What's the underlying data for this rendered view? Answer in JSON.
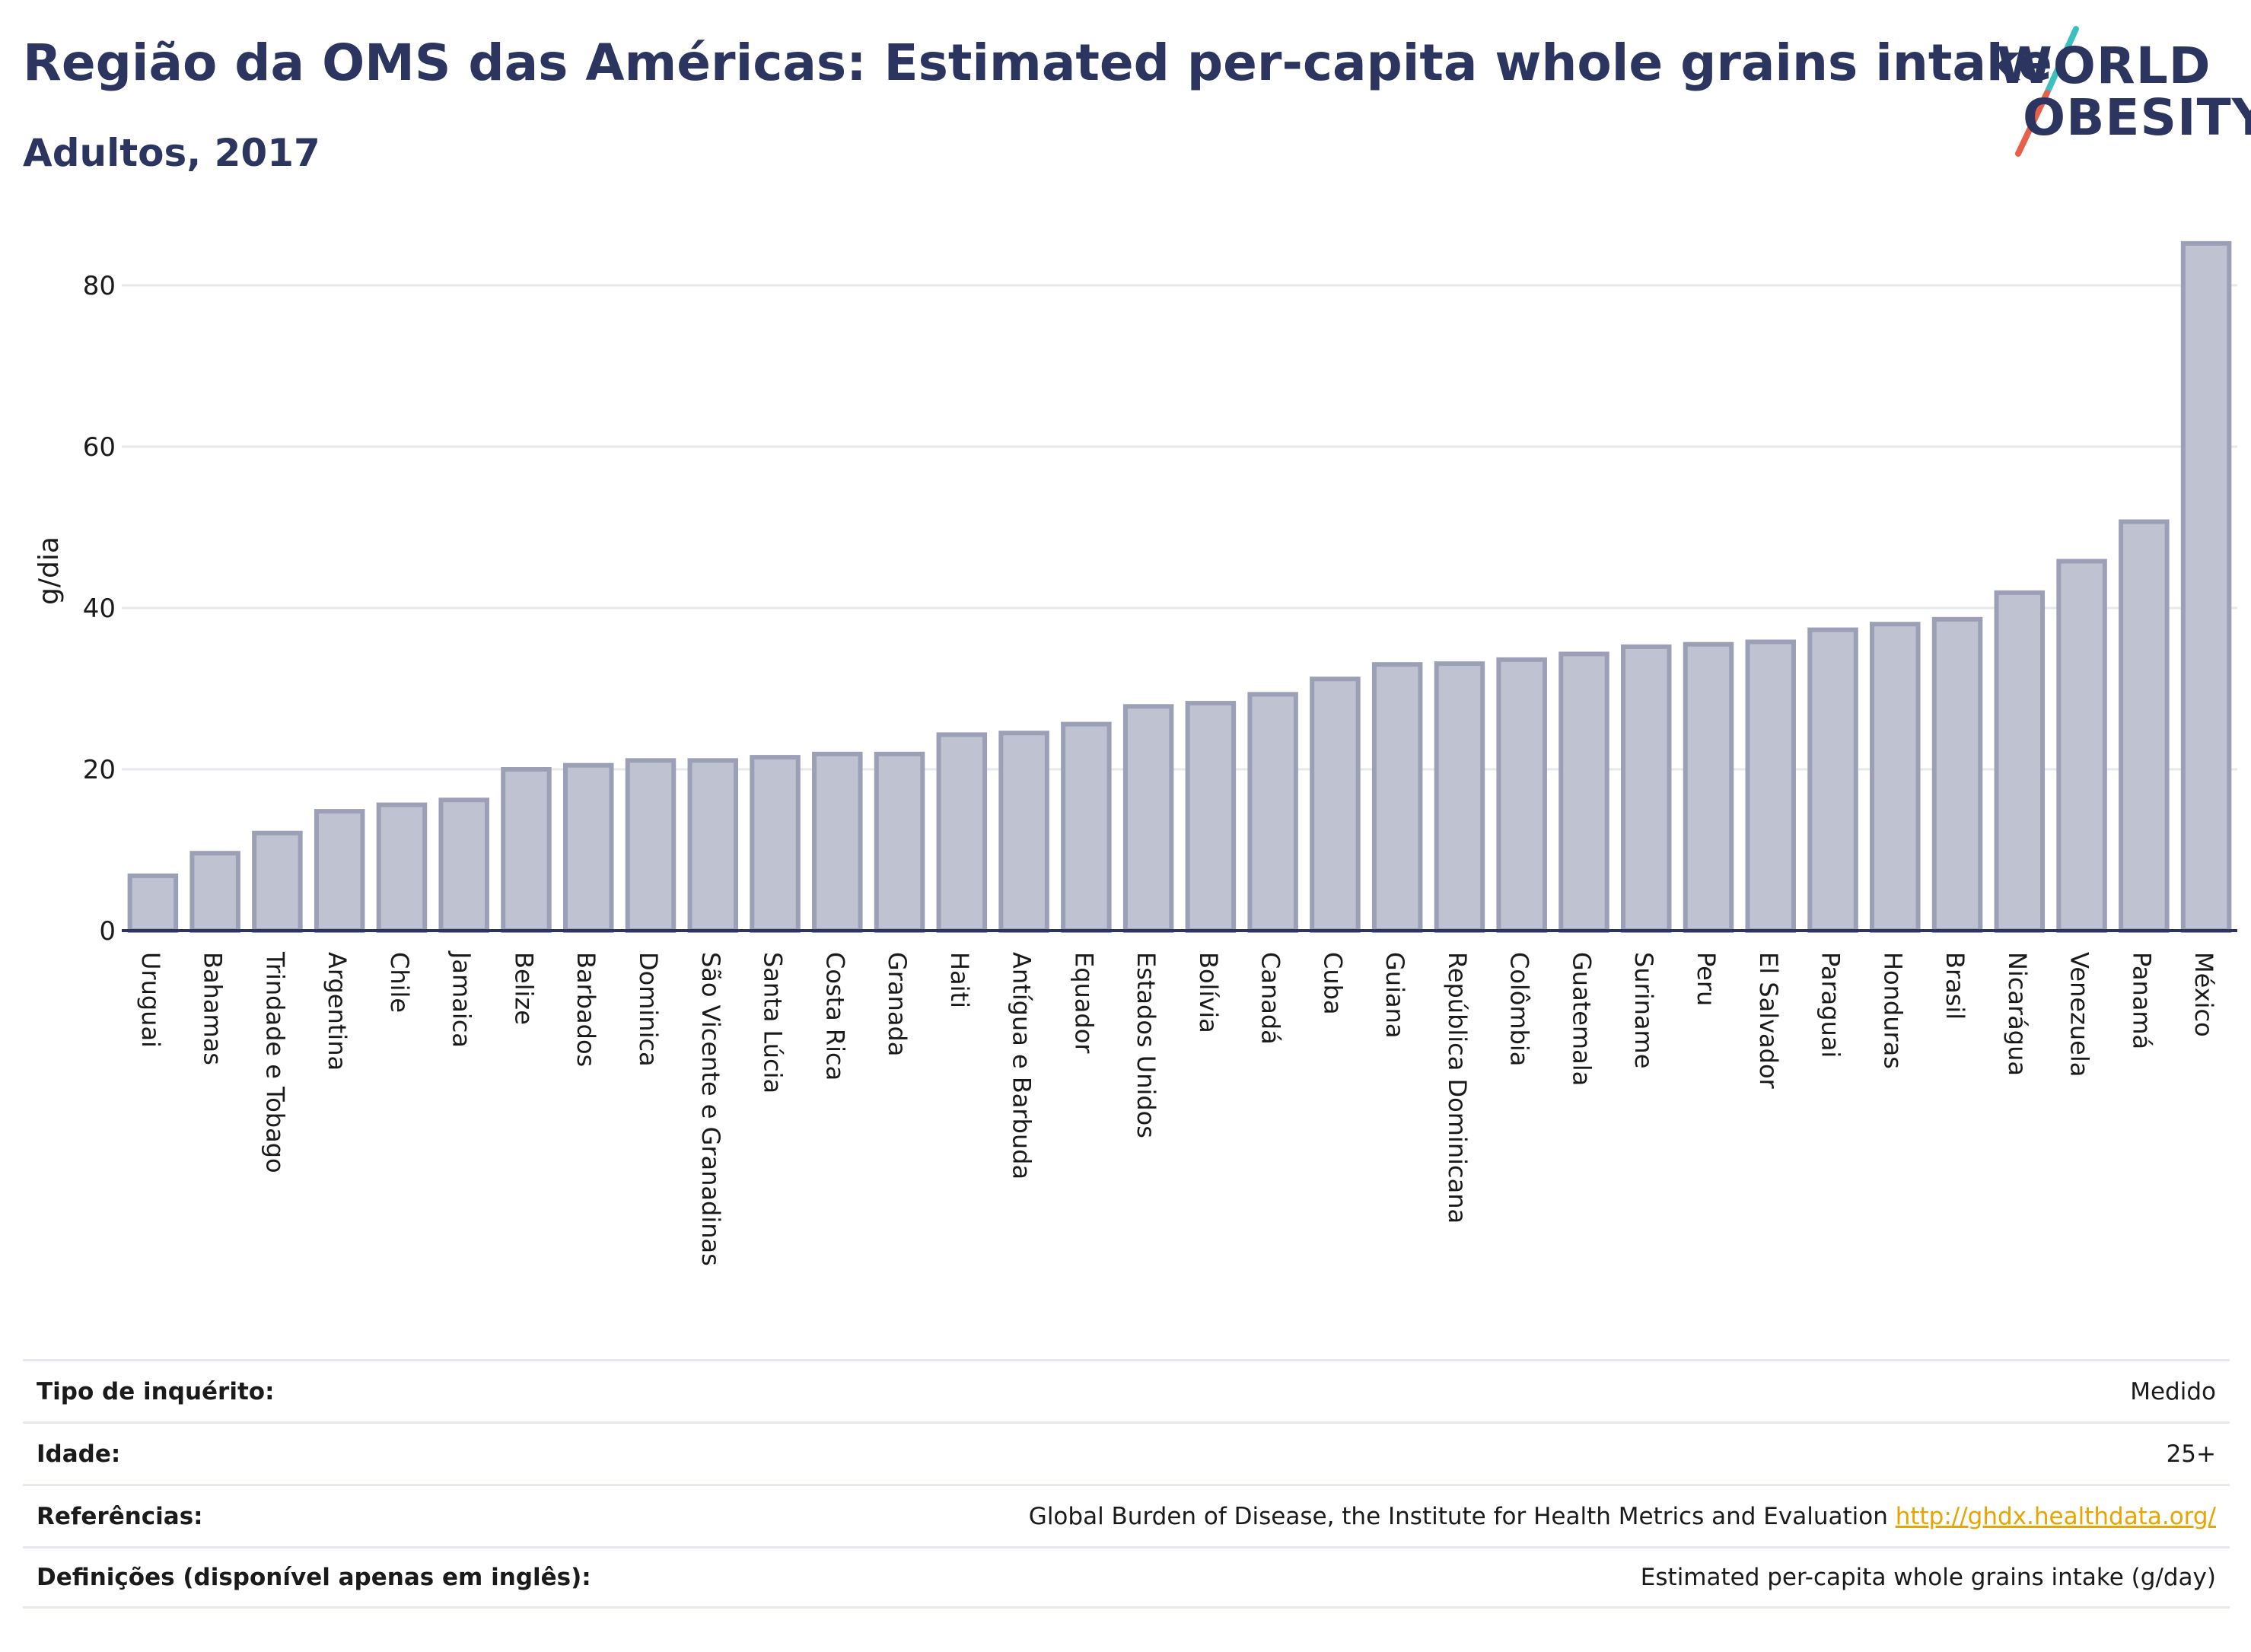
{
  "header": {
    "title": "Região da OMS das Américas: Estimated per-capita whole grains intake",
    "subtitle": "Adultos, 2017"
  },
  "logo": {
    "line1": "WORLD",
    "line2": "OBESITY",
    "slash_colors": [
      "#3cbfbf",
      "#e8604c"
    ]
  },
  "colors": {
    "bar_fill": "#bfc3d1",
    "bar_stroke": "#9ba0b6",
    "axis": "#2b3560",
    "grid": "#e6e8ee",
    "text": "#1a1a1a",
    "link": "#e8a400"
  },
  "chart_data": {
    "type": "bar",
    "title": "Região da OMS das Américas: Estimated per-capita whole grains intake",
    "subtitle": "Adultos, 2017",
    "xlabel": "",
    "ylabel": "g/dia",
    "ylim": [
      0,
      88
    ],
    "yticks": [
      0,
      20,
      40,
      60,
      80
    ],
    "grid": true,
    "categories": [
      "Uruguai",
      "Bahamas",
      "Trindade e Tobago",
      "Argentina",
      "Chile",
      "Jamaica",
      "Belize",
      "Barbados",
      "Dominica",
      "São Vicente e Granadinas",
      "Santa Lúcia",
      "Costa Rica",
      "Granada",
      "Haiti",
      "Antígua e Barbuda",
      "Equador",
      "Estados Unidos",
      "Bolívia",
      "Canadá",
      "Cuba",
      "Guiana",
      "República Dominicana",
      "Colômbia",
      "Guatemala",
      "Suriname",
      "Peru",
      "El Salvador",
      "Paraguai",
      "Honduras",
      "Brasil",
      "Nicarágua",
      "Venezuela",
      "Panamá",
      "México"
    ],
    "values": [
      6.8,
      9.6,
      12.1,
      14.8,
      15.6,
      16.2,
      20.0,
      20.5,
      21.1,
      21.1,
      21.5,
      21.9,
      21.9,
      24.3,
      24.5,
      25.6,
      27.8,
      28.2,
      29.3,
      31.2,
      33.0,
      33.1,
      33.6,
      34.3,
      35.2,
      35.5,
      35.8,
      37.3,
      38.0,
      38.6,
      41.9,
      45.8,
      50.7,
      85.2
    ]
  },
  "meta": {
    "rows": [
      {
        "label": "Tipo de inquérito:",
        "value": "Medido",
        "link": ""
      },
      {
        "label": "Idade:",
        "value": "25+",
        "link": ""
      },
      {
        "label": "Referências:",
        "value": "Global Burden of Disease, the Institute for Health Metrics and Evaluation",
        "link": "http://ghdx.healthdata.org/"
      },
      {
        "label": "Definições (disponível apenas em inglês):",
        "value": "Estimated per-capita whole grains intake (g/day)",
        "link": ""
      }
    ]
  }
}
